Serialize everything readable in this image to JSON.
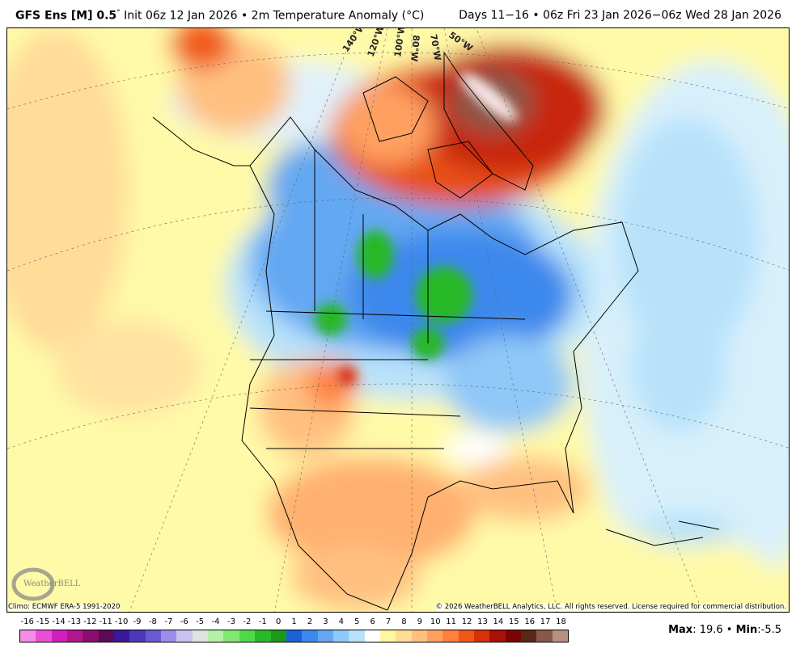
{
  "header": {
    "model": "GFS Ens [M] 0.5",
    "degree_mark": "°",
    "init": "Init 06z 12 Jan 2026",
    "separator": "•",
    "variable": "2m Temperature Anomaly (°C)",
    "period": "Days 11−16 • 06z Fri 23 Jan 2026−06z Wed 28 Jan 2026"
  },
  "map": {
    "longitude_labels": [
      "140°W",
      "120°W",
      "100°W",
      "80°W",
      "70°W",
      "50°W"
    ],
    "logo_text": "WeatherBELL Analytics LLC"
  },
  "footer": {
    "climo": "Climo: ECMWF ERA-5 1991-2020",
    "copyright": "© 2026 WeatherBELL Analytics, LLC. All rights reserved. License required for commercial distribution.",
    "max_label": "Max",
    "max_value": ": 19.6",
    "sep": " • ",
    "min_label": "Min",
    "min_value": ":-5.5"
  },
  "colorbar": {
    "labels": [
      "-16",
      "-15",
      "-14",
      "-13",
      "-12",
      "-11",
      "-10",
      "-9",
      "-8",
      "-7",
      "-6",
      "-5",
      "-4",
      "-3",
      "-2",
      "-1",
      "0",
      "1",
      "2",
      "3",
      "4",
      "5",
      "6",
      "7",
      "8",
      "9",
      "10",
      "11",
      "12",
      "13",
      "14",
      "15",
      "16",
      "17",
      "18"
    ],
    "colors": [
      "#f58ce8",
      "#ea4fd8",
      "#d11fbf",
      "#b0168f",
      "#8a0e72",
      "#5e0a56",
      "#3a1a9a",
      "#4a3ab8",
      "#6a5ad2",
      "#9a8ee8",
      "#c8c2f0",
      "#e0e4e0",
      "#b4f0a8",
      "#80e870",
      "#50d848",
      "#28b828",
      "#1a9a18",
      "#1e60d8",
      "#3c88ec",
      "#64a8f2",
      "#90c8f8",
      "#b8e2fa",
      "#ffffff",
      "#fff6a0",
      "#ffdc98",
      "#ffc080",
      "#ffa060",
      "#ff8040",
      "#f05818",
      "#d83008",
      "#a81008",
      "#7a0404",
      "#5a2818",
      "#8a5848",
      "#b89080"
    ]
  }
}
